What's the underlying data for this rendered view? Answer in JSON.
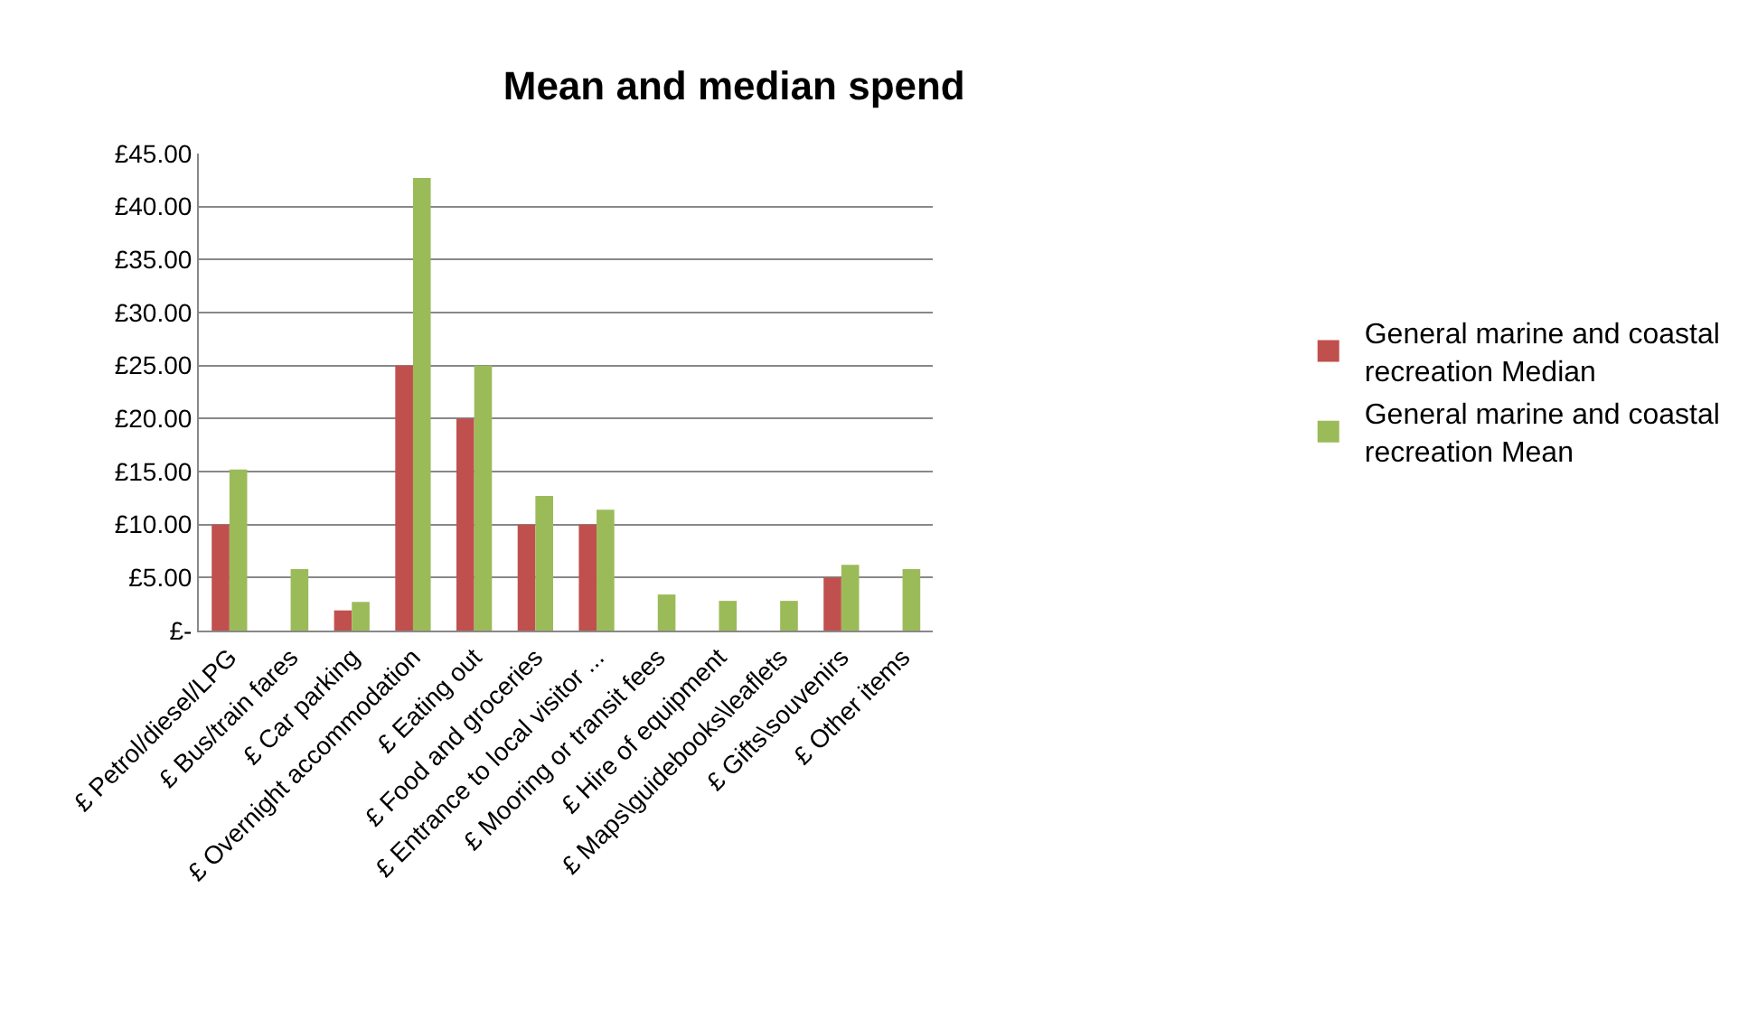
{
  "chart_data": {
    "type": "bar",
    "title": "Mean and median spend",
    "categories": [
      "£ Petrol/diesel/LPG",
      "£ Bus/train fares",
      "£ Car parking",
      "£ Overnight accommodation",
      "£ Eating out",
      "£ Food and groceries",
      "£ Entrance to local visitor ...",
      "£ Mooring or transit fees",
      "£ Hire of equipment",
      "£ Maps\\guidebooks\\leaflets",
      "£ Gifts\\souvenirs",
      "£ Other items"
    ],
    "series": [
      {
        "name": "General marine and coastal recreation Median",
        "color": "#c0504d",
        "values": [
          10,
          0,
          1.9,
          25,
          20,
          10,
          10,
          0,
          0,
          0,
          5,
          0
        ]
      },
      {
        "name": "General marine and coastal recreation Mean",
        "color": "#9bbb59",
        "values": [
          15.2,
          5.8,
          2.7,
          42.7,
          25,
          12.7,
          11.4,
          3.4,
          2.8,
          2.8,
          6.2,
          5.8
        ]
      }
    ],
    "ylim": [
      0,
      45
    ],
    "yticks": [
      {
        "value": 0,
        "label": "£-"
      },
      {
        "value": 5,
        "label": "£5.00"
      },
      {
        "value": 10,
        "label": "£10.00"
      },
      {
        "value": 15,
        "label": "£15.00"
      },
      {
        "value": 20,
        "label": "£20.00"
      },
      {
        "value": 25,
        "label": "£25.00"
      },
      {
        "value": 30,
        "label": "£30.00"
      },
      {
        "value": 35,
        "label": "£35.00"
      },
      {
        "value": 40,
        "label": "£40.00"
      },
      {
        "value": 45,
        "label": "£45.00"
      }
    ],
    "grid": "y",
    "legend": "right"
  }
}
